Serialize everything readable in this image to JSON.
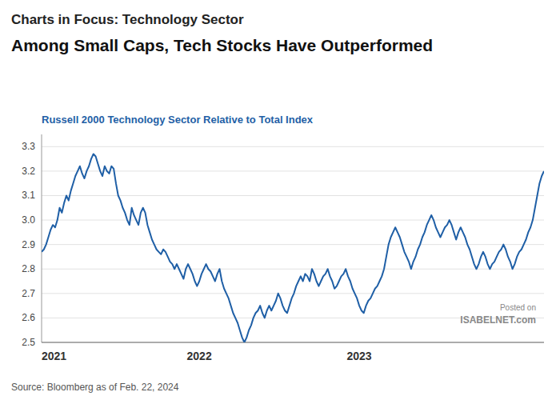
{
  "chart_data": {
    "type": "line",
    "title": "Charts in Focus: Technology Sector",
    "subtitle": "Among Small Caps, Tech Stocks Have Outperformed",
    "annotations": [
      "Russell 2000 Technology Sector Relative to Total Index",
      "Posted on",
      "ISABELNET.com",
      "Source: Bloomberg as of Feb. 22, 2024"
    ],
    "color": "#1f5fa6",
    "grid": true,
    "ylim": [
      2.5,
      3.35
    ],
    "yticks": [
      2.5,
      2.6,
      2.7,
      2.8,
      2.9,
      {
        "value": 3.0,
        "label": "3.0"
      },
      3.1,
      3.2,
      3.3
    ],
    "categories": [
      "2021",
      null,
      null,
      null,
      null,
      null,
      null,
      null,
      null,
      null,
      null,
      null,
      null,
      null,
      null,
      null,
      null,
      null,
      null,
      null,
      null,
      null,
      null,
      null,
      null,
      null,
      null,
      null,
      null,
      null,
      null,
      null,
      null,
      null,
      null,
      null,
      null,
      null,
      null,
      null,
      null,
      null,
      null,
      null,
      null,
      null,
      null,
      null,
      null,
      null,
      null,
      null,
      null,
      null,
      null,
      null,
      null,
      null,
      null,
      null,
      null,
      null,
      null,
      null,
      null,
      null,
      null,
      null,
      null,
      null,
      "2022",
      null,
      null,
      null,
      null,
      null,
      null,
      null,
      null,
      null,
      null,
      null,
      null,
      null,
      null,
      null,
      null,
      null,
      null,
      null,
      null,
      null,
      null,
      null,
      null,
      null,
      null,
      null,
      null,
      null,
      null,
      null,
      null,
      null,
      null,
      null,
      null,
      null,
      null,
      null,
      null,
      null,
      null,
      null,
      null,
      null,
      null,
      null,
      null,
      null,
      null,
      null,
      null,
      null,
      null,
      null,
      null,
      null,
      null,
      null,
      null,
      null,
      null,
      null,
      null,
      null,
      null,
      null,
      null,
      null,
      null,
      "2023",
      null,
      null,
      null,
      null,
      null,
      null,
      null,
      null,
      null,
      null,
      null,
      null,
      null,
      null,
      null,
      null,
      null,
      null,
      null,
      null,
      null,
      null,
      null,
      null,
      null,
      null,
      null,
      null,
      null,
      null,
      null,
      null,
      null,
      null,
      null,
      null,
      null,
      null,
      null,
      null,
      null,
      null,
      null,
      null,
      null,
      null,
      null,
      null,
      null,
      null,
      null,
      null,
      null,
      null,
      null,
      null,
      null,
      null,
      null,
      null,
      null,
      null,
      null,
      null,
      null,
      null,
      null,
      null,
      null,
      null,
      null,
      null,
      null,
      null,
      null,
      null,
      null,
      null,
      null,
      null,
      null,
      null
    ],
    "values": [
      2.87,
      2.88,
      2.9,
      2.93,
      2.96,
      2.98,
      2.97,
      3.0,
      3.05,
      3.03,
      3.07,
      3.1,
      3.08,
      3.12,
      3.15,
      3.18,
      3.2,
      3.22,
      3.19,
      3.17,
      3.2,
      3.22,
      3.25,
      3.27,
      3.26,
      3.23,
      3.2,
      3.18,
      3.22,
      3.2,
      3.19,
      3.22,
      3.21,
      3.15,
      3.1,
      3.08,
      3.05,
      3.03,
      3.0,
      2.98,
      3.05,
      3.02,
      3.0,
      2.98,
      3.03,
      3.05,
      3.03,
      2.98,
      2.95,
      2.92,
      2.9,
      2.88,
      2.87,
      2.86,
      2.88,
      2.87,
      2.85,
      2.83,
      2.82,
      2.8,
      2.82,
      2.8,
      2.78,
      2.76,
      2.8,
      2.82,
      2.8,
      2.78,
      2.75,
      2.73,
      2.75,
      2.78,
      2.8,
      2.82,
      2.8,
      2.79,
      2.77,
      2.75,
      2.78,
      2.8,
      2.75,
      2.72,
      2.7,
      2.68,
      2.65,
      2.62,
      2.6,
      2.58,
      2.55,
      2.52,
      2.5,
      2.52,
      2.55,
      2.57,
      2.6,
      2.62,
      2.63,
      2.65,
      2.62,
      2.6,
      2.63,
      2.65,
      2.63,
      2.65,
      2.67,
      2.7,
      2.68,
      2.65,
      2.63,
      2.62,
      2.65,
      2.68,
      2.7,
      2.73,
      2.75,
      2.77,
      2.75,
      2.78,
      2.77,
      2.75,
      2.8,
      2.78,
      2.75,
      2.73,
      2.75,
      2.77,
      2.78,
      2.8,
      2.77,
      2.75,
      2.72,
      2.73,
      2.75,
      2.77,
      2.78,
      2.8,
      2.77,
      2.75,
      2.72,
      2.7,
      2.68,
      2.65,
      2.63,
      2.62,
      2.65,
      2.67,
      2.68,
      2.7,
      2.72,
      2.73,
      2.75,
      2.77,
      2.8,
      2.85,
      2.9,
      2.93,
      2.95,
      2.97,
      2.95,
      2.93,
      2.9,
      2.87,
      2.85,
      2.83,
      2.8,
      2.83,
      2.85,
      2.88,
      2.9,
      2.93,
      2.95,
      2.98,
      3.0,
      3.02,
      3.0,
      2.97,
      2.95,
      2.93,
      2.95,
      2.97,
      2.98,
      3.0,
      2.98,
      2.95,
      2.92,
      2.95,
      2.97,
      2.95,
      2.93,
      2.9,
      2.88,
      2.85,
      2.82,
      2.8,
      2.82,
      2.85,
      2.87,
      2.85,
      2.82,
      2.8,
      2.82,
      2.83,
      2.85,
      2.87,
      2.88,
      2.9,
      2.88,
      2.85,
      2.83,
      2.8,
      2.82,
      2.85,
      2.87,
      2.88,
      2.9,
      2.92,
      2.95,
      2.97,
      3.0,
      3.05,
      3.1,
      3.15,
      3.18,
      3.2
    ]
  }
}
